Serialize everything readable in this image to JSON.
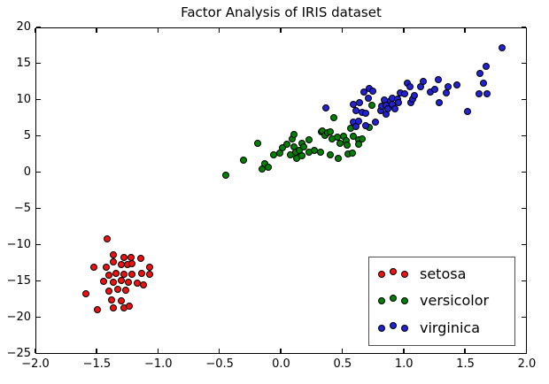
{
  "title": "Factor Analysis of IRIS dataset",
  "axes": {
    "xticks": {
      "values": [
        -2.0,
        -1.5,
        -1.0,
        -0.5,
        0.0,
        0.5,
        1.0,
        1.5,
        2.0
      ],
      "labels": [
        "−2.0",
        "−1.5",
        "−1.0",
        "−0.5",
        "0.0",
        "0.5",
        "1.0",
        "1.5",
        "2.0"
      ]
    },
    "yticks": {
      "values": [
        20,
        15,
        10,
        5,
        0,
        -5,
        -10,
        -15,
        -20,
        -25
      ],
      "labels": [
        "20",
        "15",
        "10",
        "5",
        "0",
        "−5",
        "−10",
        "−15",
        "−20",
        "−25"
      ]
    }
  },
  "chart_data": {
    "type": "scatter",
    "title": "Factor Analysis of IRIS dataset",
    "xlabel": "",
    "ylabel": "",
    "xlim": [
      -2.0,
      2.0
    ],
    "ylim": [
      -25,
      20
    ],
    "grid": false,
    "legend_position": "lower right",
    "marker_edge_color": "#000000",
    "series": [
      {
        "name": "setosa",
        "color": "#ee1111",
        "points": [
          [
            -1.42,
            -9.0
          ],
          [
            -1.37,
            -11.2
          ],
          [
            -1.29,
            -11.6
          ],
          [
            -1.23,
            -11.6
          ],
          [
            -1.15,
            -11.7
          ],
          [
            -1.53,
            -12.9
          ],
          [
            -1.43,
            -12.9
          ],
          [
            -1.37,
            -12.2
          ],
          [
            -1.31,
            -12.6
          ],
          [
            -1.26,
            -12.6
          ],
          [
            -1.22,
            -12.4
          ],
          [
            -1.08,
            -12.9
          ],
          [
            -1.41,
            -14.0
          ],
          [
            -1.35,
            -13.8
          ],
          [
            -1.29,
            -13.9
          ],
          [
            -1.22,
            -13.9
          ],
          [
            -1.14,
            -13.8
          ],
          [
            -1.08,
            -13.9
          ],
          [
            -1.45,
            -14.9
          ],
          [
            -1.37,
            -15.0
          ],
          [
            -1.31,
            -14.8
          ],
          [
            -1.25,
            -15.0
          ],
          [
            -1.18,
            -15.1
          ],
          [
            -1.13,
            -15.4
          ],
          [
            -1.6,
            -16.6
          ],
          [
            -1.41,
            -16.2
          ],
          [
            -1.34,
            -16.0
          ],
          [
            -1.27,
            -16.1
          ],
          [
            -1.39,
            -17.4
          ],
          [
            -1.31,
            -17.6
          ],
          [
            -1.5,
            -18.8
          ],
          [
            -1.37,
            -18.5
          ],
          [
            -1.29,
            -18.5
          ],
          [
            -1.24,
            -18.3
          ]
        ]
      },
      {
        "name": "versicolor",
        "color": "#008000",
        "points": [
          [
            -0.46,
            -0.3
          ],
          [
            -0.31,
            1.8
          ],
          [
            -0.2,
            4.1
          ],
          [
            -0.16,
            0.6
          ],
          [
            -0.14,
            1.3
          ],
          [
            -0.11,
            0.9
          ],
          [
            -0.07,
            2.6
          ],
          [
            -0.02,
            2.8
          ],
          [
            0.0,
            3.5
          ],
          [
            0.04,
            4.0
          ],
          [
            0.07,
            2.6
          ],
          [
            0.08,
            4.8
          ],
          [
            0.1,
            5.4
          ],
          [
            0.1,
            3.7
          ],
          [
            0.11,
            2.9
          ],
          [
            0.12,
            2.1
          ],
          [
            0.14,
            3.2
          ],
          [
            0.16,
            4.1
          ],
          [
            0.16,
            2.5
          ],
          [
            0.18,
            3.7
          ],
          [
            0.22,
            4.6
          ],
          [
            0.22,
            2.9
          ],
          [
            0.26,
            3.2
          ],
          [
            0.31,
            2.9
          ],
          [
            0.32,
            5.7
          ],
          [
            0.33,
            5.9
          ],
          [
            0.35,
            5.2
          ],
          [
            0.37,
            5.6
          ],
          [
            0.39,
            5.7
          ],
          [
            0.39,
            2.6
          ],
          [
            0.41,
            4.8
          ],
          [
            0.45,
            5.0
          ],
          [
            0.46,
            2.1
          ],
          [
            0.47,
            4.1
          ],
          [
            0.5,
            5.1
          ],
          [
            0.52,
            4.5
          ],
          [
            0.53,
            3.9
          ],
          [
            0.54,
            2.7
          ],
          [
            0.57,
            2.8
          ],
          [
            0.58,
            5.1
          ],
          [
            0.62,
            4.6
          ],
          [
            0.62,
            4.0
          ],
          [
            0.65,
            4.7
          ],
          [
            0.56,
            6.2
          ],
          [
            0.42,
            7.7
          ],
          [
            0.71,
            6.4
          ],
          [
            0.73,
            9.4
          ]
        ]
      },
      {
        "name": "virginica",
        "color": "#2222d5",
        "points": [
          [
            0.36,
            9.0
          ],
          [
            0.58,
            9.5
          ],
          [
            0.58,
            7.1
          ],
          [
            0.6,
            8.7
          ],
          [
            0.6,
            6.5
          ],
          [
            0.62,
            7.2
          ],
          [
            0.63,
            9.8
          ],
          [
            0.65,
            8.4
          ],
          [
            0.67,
            11.2
          ],
          [
            0.68,
            6.6
          ],
          [
            0.68,
            8.3
          ],
          [
            0.7,
            10.4
          ],
          [
            0.71,
            11.7
          ],
          [
            0.74,
            11.3
          ],
          [
            0.76,
            7.1
          ],
          [
            0.8,
            8.6
          ],
          [
            0.81,
            9.3
          ],
          [
            0.83,
            10.1
          ],
          [
            0.85,
            9.4
          ],
          [
            0.85,
            8.2
          ],
          [
            0.86,
            8.9
          ],
          [
            0.88,
            10.0
          ],
          [
            0.9,
            9.5
          ],
          [
            0.9,
            10.4
          ],
          [
            0.92,
            8.9
          ],
          [
            0.94,
            10.2
          ],
          [
            0.95,
            9.8
          ],
          [
            0.96,
            11.1
          ],
          [
            1.0,
            11.0
          ],
          [
            1.02,
            12.4
          ],
          [
            1.04,
            11.9
          ],
          [
            1.05,
            9.8
          ],
          [
            1.06,
            10.2
          ],
          [
            1.08,
            10.7
          ],
          [
            1.13,
            12.0
          ],
          [
            1.15,
            12.7
          ],
          [
            1.21,
            11.2
          ],
          [
            1.24,
            11.6
          ],
          [
            1.27,
            12.9
          ],
          [
            1.28,
            9.8
          ],
          [
            1.34,
            11.1
          ],
          [
            1.35,
            11.9
          ],
          [
            1.42,
            12.2
          ],
          [
            1.51,
            8.5
          ],
          [
            1.6,
            11.0
          ],
          [
            1.61,
            13.8
          ],
          [
            1.64,
            12.4
          ],
          [
            1.66,
            14.7
          ],
          [
            1.67,
            11.0
          ],
          [
            1.79,
            17.3
          ]
        ]
      }
    ]
  }
}
